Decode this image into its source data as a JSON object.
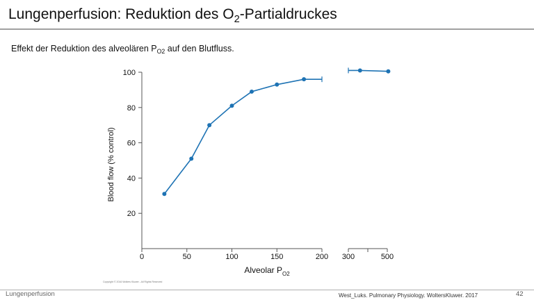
{
  "slide": {
    "title_main": "Lungenperfusion:  Reduktion des O",
    "title_sub": "2",
    "title_tail": "-Partialdruckes",
    "subtitle_main": "Effekt der Reduktion des alveolären P",
    "subtitle_sub": "O2",
    "subtitle_tail": " auf den Blutfluss.",
    "footer_left": "Lungenperfusion",
    "footer_citation": "West_Luks. Pulmonary Physiology. WoltersKluwer. 2017",
    "page_number": "42",
    "copyright": "Copyright © 2016 Wolters Kluwer - All Rights Reserved"
  },
  "chart_data": {
    "type": "line",
    "xlabel_main": "Alveolar P",
    "xlabel_sub": "O2",
    "ylabel": "Blood flow (% control)",
    "ylim": [
      0,
      100
    ],
    "yticks": [
      20,
      40,
      60,
      80,
      100
    ],
    "xlim_left": [
      0,
      200
    ],
    "xticks_left": [
      0,
      50,
      100,
      150,
      200
    ],
    "xlim_right": [
      300,
      500
    ],
    "xticks_right": [
      300,
      500
    ],
    "axis_break": true,
    "grid": false,
    "series": [
      {
        "color": "#1e73b4",
        "x": [
          25,
          55,
          75,
          100,
          122,
          150,
          180,
          360,
          505
        ],
        "y": [
          31,
          51,
          70,
          81,
          89,
          93,
          96,
          101,
          100.5
        ]
      }
    ]
  }
}
